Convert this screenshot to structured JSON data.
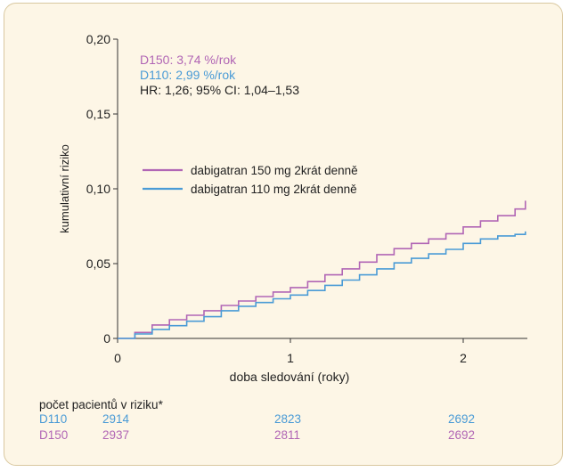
{
  "chart_data": {
    "type": "line",
    "xlabel": "doba sledování (roky)",
    "ylabel": "kumulativní riziko",
    "xlim": [
      0,
      2.37
    ],
    "ylim": [
      0,
      0.2
    ],
    "x_ticks": [
      0,
      1,
      2
    ],
    "x_tick_labels": [
      "0",
      "1",
      "2"
    ],
    "y_ticks": [
      0,
      0.05,
      0.1,
      0.15,
      0.2
    ],
    "y_tick_labels": [
      "0",
      "0,05",
      "0,10",
      "0,15",
      "0,20"
    ],
    "grid": false,
    "legend_position": "upper-left",
    "annotations": {
      "d150": "D150: 3,74 %/rok",
      "d110": "D110: 2,99 %/rok",
      "hr": "HR: 1,26; 95% CI: 1,04–1,53"
    },
    "series": [
      {
        "name": "dabigatran 150 mg 2krát denně",
        "color": "#b166b5",
        "x": [
          0,
          0.1,
          0.2,
          0.3,
          0.4,
          0.5,
          0.6,
          0.7,
          0.8,
          0.9,
          1.0,
          1.1,
          1.2,
          1.3,
          1.4,
          1.5,
          1.6,
          1.7,
          1.8,
          1.9,
          2.0,
          2.1,
          2.2,
          2.3,
          2.36
        ],
        "y": [
          0,
          0.004,
          0.009,
          0.0125,
          0.0155,
          0.0185,
          0.022,
          0.025,
          0.028,
          0.031,
          0.034,
          0.038,
          0.0425,
          0.0465,
          0.051,
          0.056,
          0.06,
          0.0635,
          0.0665,
          0.07,
          0.0745,
          0.0785,
          0.082,
          0.0865,
          0.092
        ]
      },
      {
        "name": "dabigatran 110 mg 2krát denně",
        "color": "#4a9bd6",
        "x": [
          0,
          0.1,
          0.2,
          0.3,
          0.4,
          0.5,
          0.6,
          0.7,
          0.8,
          0.9,
          1.0,
          1.1,
          1.2,
          1.3,
          1.4,
          1.5,
          1.6,
          1.7,
          1.8,
          1.9,
          2.0,
          2.1,
          2.2,
          2.3,
          2.36
        ],
        "y": [
          0,
          0.003,
          0.006,
          0.0085,
          0.0115,
          0.0145,
          0.0185,
          0.0215,
          0.024,
          0.0265,
          0.029,
          0.032,
          0.0355,
          0.039,
          0.0425,
          0.0465,
          0.0505,
          0.0535,
          0.0565,
          0.0595,
          0.0635,
          0.0665,
          0.0685,
          0.0695,
          0.0715
        ]
      }
    ]
  },
  "risk_table": {
    "title": "počet pacientů v riziku*",
    "rows": [
      {
        "label": "D110",
        "values": [
          "2914",
          "2823",
          "2692"
        ]
      },
      {
        "label": "D150",
        "values": [
          "2937",
          "2811",
          "2692"
        ]
      }
    ]
  }
}
